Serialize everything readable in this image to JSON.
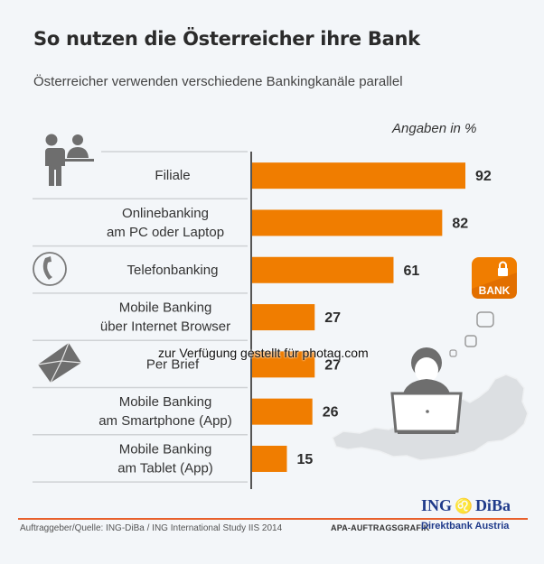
{
  "title": "So nutzen die Österreicher ihre Bank",
  "subtitle": "Österreicher verwenden verschiedene Bankingkanäle parallel",
  "unit_note": "Angaben in %",
  "colors": {
    "bar": "#f07d00",
    "brand": "#1f3a8a",
    "accent_line": "#e8602c"
  },
  "chart_data": {
    "type": "bar",
    "orientation": "horizontal",
    "title": "So nutzen die Österreicher ihre Bank",
    "subtitle": "Österreicher verwenden verschiedene Bankingkanäle parallel",
    "xlabel": "",
    "ylabel": "",
    "unit": "%",
    "xlim": [
      0,
      100
    ],
    "grid": false,
    "categories": [
      {
        "lines": [
          "Filiale"
        ],
        "icon": "person-counter-icon"
      },
      {
        "lines": [
          "Onlinebanking",
          "am PC oder Laptop"
        ],
        "icon": ""
      },
      {
        "lines": [
          "Telefonbanking"
        ],
        "icon": "phone-icon"
      },
      {
        "lines": [
          "Mobile Banking",
          "über Internet Browser"
        ],
        "icon": ""
      },
      {
        "lines": [
          "Per Brief"
        ],
        "icon": "envelope-icon"
      },
      {
        "lines": [
          "Mobile Banking",
          "am Smartphone (App)"
        ],
        "icon": ""
      },
      {
        "lines": [
          "Mobile Banking",
          "am Tablet (App)"
        ],
        "icon": ""
      }
    ],
    "values": [
      92,
      82,
      61,
      27,
      27,
      26,
      15
    ]
  },
  "decor": {
    "bank_badge": "BANK"
  },
  "footer": {
    "source": "Auftraggeber/Quelle: ING-DiBa / ING International Study IIS 2014",
    "apa": "APA-AUFTRAGSGRAFIK",
    "brand_left": "ING",
    "brand_right": "DiBa",
    "brand_sub": "Direktbank Austria"
  },
  "watermark": "zur Verfügung gestellt für photaq.com"
}
